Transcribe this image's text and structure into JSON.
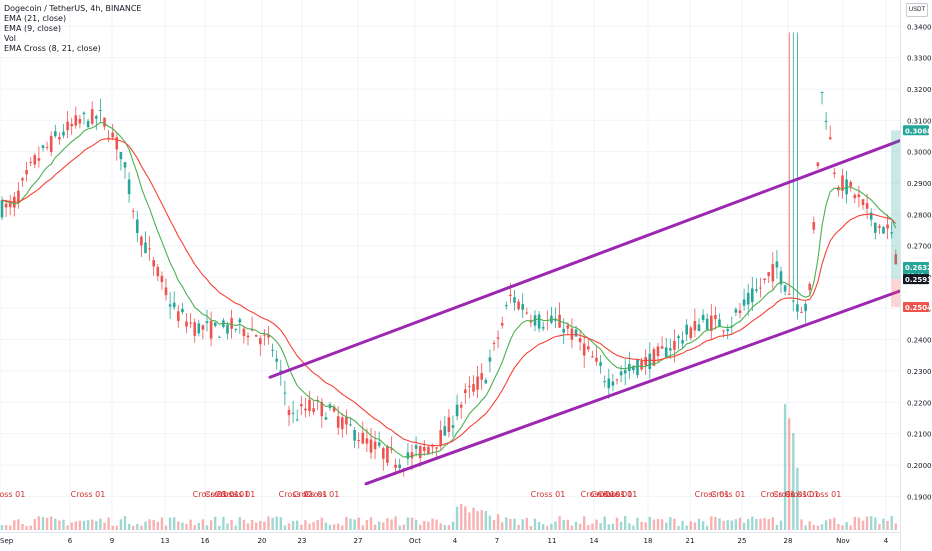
{
  "legend": {
    "title": "Dogecoin / TetherUS, 4h, BINANCE",
    "line1": "EMA (21, close)",
    "line2": "EMA (9, close)",
    "line3": "Vol",
    "line4": "EMA Cross (8, 21, close)"
  },
  "currency": "USDT",
  "colors": {
    "up": "#26a69a",
    "down": "#ef5350",
    "ema21": "#f44336",
    "ema9": "#4caf50",
    "channel": "#9c27b0",
    "cross_label": "#d32f2f"
  },
  "chart_data": {
    "type": "candlestick",
    "symbol": "DOGE/USDT",
    "interval": "4h",
    "ylim": [
      0.185,
      0.342
    ],
    "y_ticks": [
      "0.3400",
      "0.3300",
      "0.3200",
      "0.3100",
      "0.3000",
      "0.2900",
      "0.2800",
      "0.2700",
      "0.2600",
      "0.2500",
      "0.2400",
      "0.2300",
      "0.2200",
      "0.2100",
      "0.2000",
      "0.1900"
    ],
    "x_ticks": [
      "Sep",
      "6",
      "9",
      "13",
      "16",
      "20",
      "23",
      "27",
      "Oct",
      "4",
      "7",
      "11",
      "14",
      "18",
      "21",
      "25",
      "28",
      "Nov",
      "4"
    ],
    "price_path": [
      [
        "Sep",
        0.282
      ],
      [
        "Sep",
        0.297
      ],
      [
        "Sep",
        0.305
      ],
      [
        "6",
        0.31
      ],
      [
        "6",
        0.311
      ],
      [
        "9",
        0.3
      ],
      [
        "9",
        0.275
      ],
      [
        "9",
        0.262
      ],
      [
        "13",
        0.249
      ],
      [
        "13",
        0.244
      ],
      [
        "16",
        0.243
      ],
      [
        "16",
        0.244
      ],
      [
        "16",
        0.243
      ],
      [
        "20",
        0.238
      ],
      [
        "20",
        0.215
      ],
      [
        "23",
        0.219
      ],
      [
        "23",
        0.217
      ],
      [
        "23",
        0.212
      ],
      [
        "27",
        0.206
      ],
      [
        "27",
        0.201
      ],
      [
        "Oct",
        0.205
      ],
      [
        "Oct",
        0.21
      ],
      [
        "4",
        0.222
      ],
      [
        "4",
        0.229
      ],
      [
        "7",
        0.254
      ],
      [
        "7",
        0.246
      ],
      [
        "11",
        0.245
      ],
      [
        "11",
        0.238
      ],
      [
        "14",
        0.227
      ],
      [
        "14",
        0.231
      ],
      [
        "18",
        0.235
      ],
      [
        "18",
        0.24
      ],
      [
        "21",
        0.246
      ],
      [
        "21",
        0.245
      ],
      [
        "25",
        0.254
      ],
      [
        "25",
        0.263
      ],
      [
        "28",
        0.252
      ],
      [
        "28",
        0.25
      ],
      [
        "28",
        0.32
      ],
      [
        "28",
        0.291
      ],
      [
        "Nov",
        0.287
      ],
      [
        "Nov",
        0.277
      ],
      [
        "4",
        0.275
      ],
      [
        "4",
        0.272
      ],
      [
        "4",
        0.26
      ]
    ],
    "channel_lines": [
      {
        "from": [
          "20",
          0.228
        ],
        "to": [
          "4",
          0.304
        ]
      },
      {
        "from": [
          "27",
          0.194
        ],
        "to": [
          "4",
          0.256
        ]
      }
    ],
    "price_labels": [
      {
        "value": "0.3068",
        "bg": "#26a69a"
      },
      {
        "value": "0.2632",
        "sub": "33:45",
        "bg": "#26a69a"
      },
      {
        "value": "0.2593",
        "bg": "#131722"
      },
      {
        "value": "0.2504",
        "bg": "#ef5350"
      }
    ],
    "cross_markers": [
      "Cross 01",
      "Cross 01",
      "Cross 01",
      "Cross 01",
      "Cross 01",
      "Cross 01",
      "Cross 01",
      "Cross 01",
      "Cross 01",
      "Cross 01",
      "Cross 01",
      "Cross 01",
      "Cross 01",
      "Cross 01",
      "Cross 01",
      "Cross 01",
      "Cross 01",
      "Cross 01",
      "Cross 01",
      "Cross 01"
    ]
  }
}
